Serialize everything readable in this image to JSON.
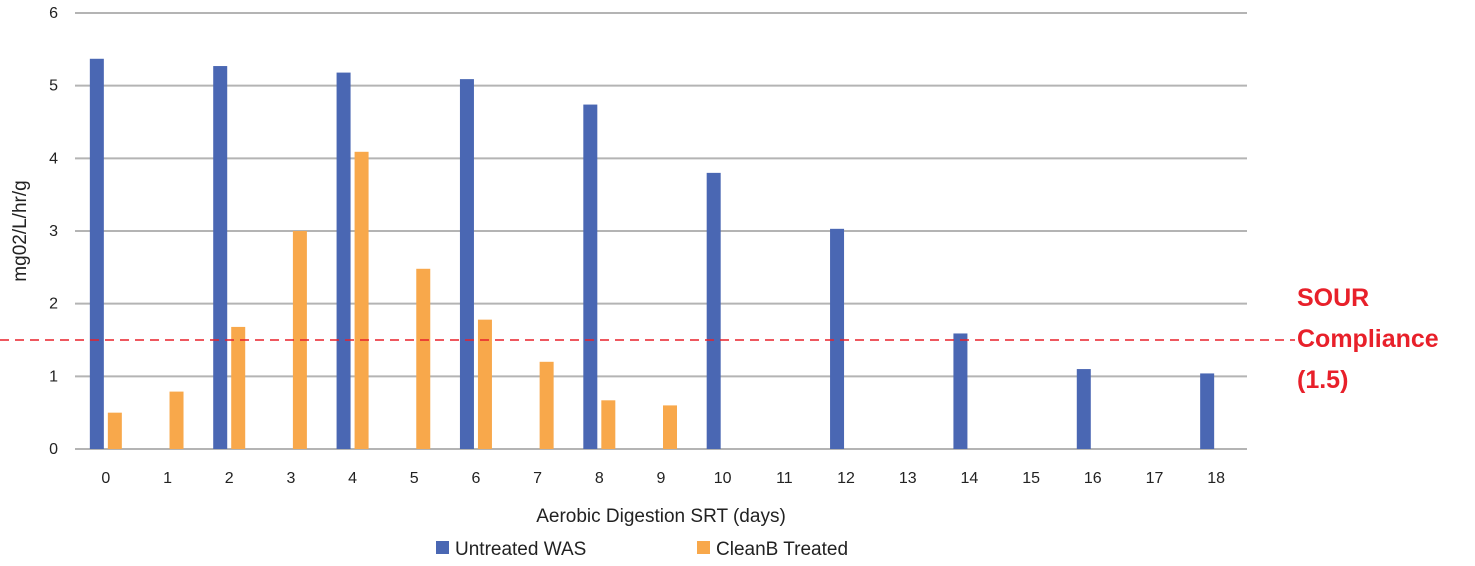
{
  "chart_data": {
    "type": "bar",
    "title": "",
    "xlabel": "Aerobic Digestion SRT (days)",
    "ylabel": "mg02/L/hr/g",
    "ylim": [
      0,
      6
    ],
    "yticks": [
      "0",
      "1",
      "2",
      "3",
      "4",
      "5",
      "6"
    ],
    "categories": [
      "0",
      "1",
      "2",
      "3",
      "4",
      "5",
      "6",
      "7",
      "8",
      "9",
      "10",
      "11",
      "12",
      "13",
      "14",
      "15",
      "16",
      "17",
      "18"
    ],
    "series": [
      {
        "name": "Untreated WAS",
        "color": "#4a67b3",
        "values": [
          5.37,
          null,
          5.27,
          null,
          5.18,
          null,
          5.09,
          null,
          4.74,
          null,
          3.8,
          null,
          3.03,
          null,
          1.59,
          null,
          1.1,
          null,
          1.04
        ]
      },
      {
        "name": "CleanB Treated",
        "color": "#f8a84b",
        "values": [
          0.5,
          0.79,
          1.68,
          3.0,
          4.09,
          2.48,
          1.78,
          1.2,
          0.67,
          0.6,
          null,
          null,
          null,
          null,
          null,
          null,
          null,
          null,
          null
        ]
      }
    ],
    "reference_line": {
      "value": 1.5,
      "color": "#e8202a",
      "style": "dashed"
    },
    "annotation": {
      "lines": [
        "SOUR",
        "Compliance",
        "(1.5)"
      ],
      "color": "#e8202a"
    },
    "grid": true,
    "legend_position": "bottom"
  }
}
